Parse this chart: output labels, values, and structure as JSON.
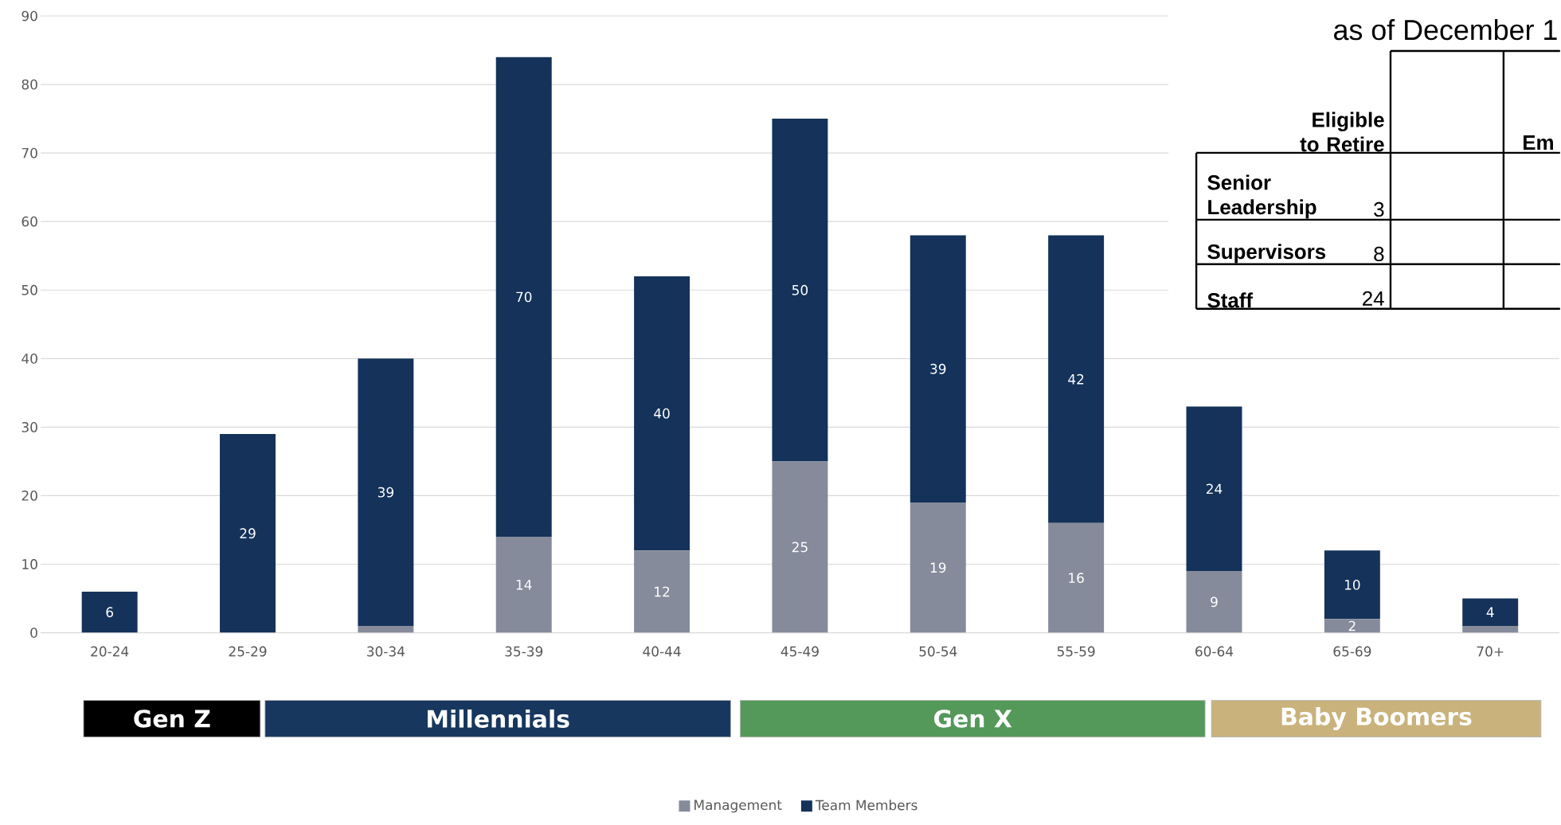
{
  "chart_data": {
    "type": "bar",
    "stacked": true,
    "categories": [
      "20-24",
      "25-29",
      "30-34",
      "35-39",
      "40-44",
      "45-49",
      "50-54",
      "55-59",
      "60-64",
      "65-69",
      "70+"
    ],
    "series": [
      {
        "name": "Management",
        "color": "#868b9b",
        "values": [
          null,
          null,
          1,
          14,
          12,
          25,
          19,
          16,
          9,
          2,
          1
        ],
        "value_labels": [
          null,
          null,
          null,
          "14",
          "12",
          "25",
          "19",
          "16",
          "9",
          "2",
          null
        ]
      },
      {
        "name": "Team Members",
        "color": "#14325a",
        "values": [
          6,
          29,
          39,
          70,
          40,
          50,
          39,
          42,
          24,
          10,
          4
        ],
        "value_labels": [
          "6",
          "29",
          "39",
          "70",
          "40",
          "50",
          "39",
          "42",
          "24",
          "10",
          "4"
        ]
      }
    ],
    "ylim": [
      0,
      90
    ],
    "yticks": [
      0,
      10,
      20,
      30,
      40,
      50,
      60,
      70,
      80,
      90
    ],
    "grid": "y",
    "legend": "bottom",
    "annotations": [
      "Gen Z",
      "Millennials",
      "Gen X",
      "Baby Boomers",
      "as of December 1",
      "Eligible to Retire",
      "Em",
      "Senior Leadership",
      "Supervisors",
      "Staff",
      "3",
      "8",
      "24"
    ]
  }
}
